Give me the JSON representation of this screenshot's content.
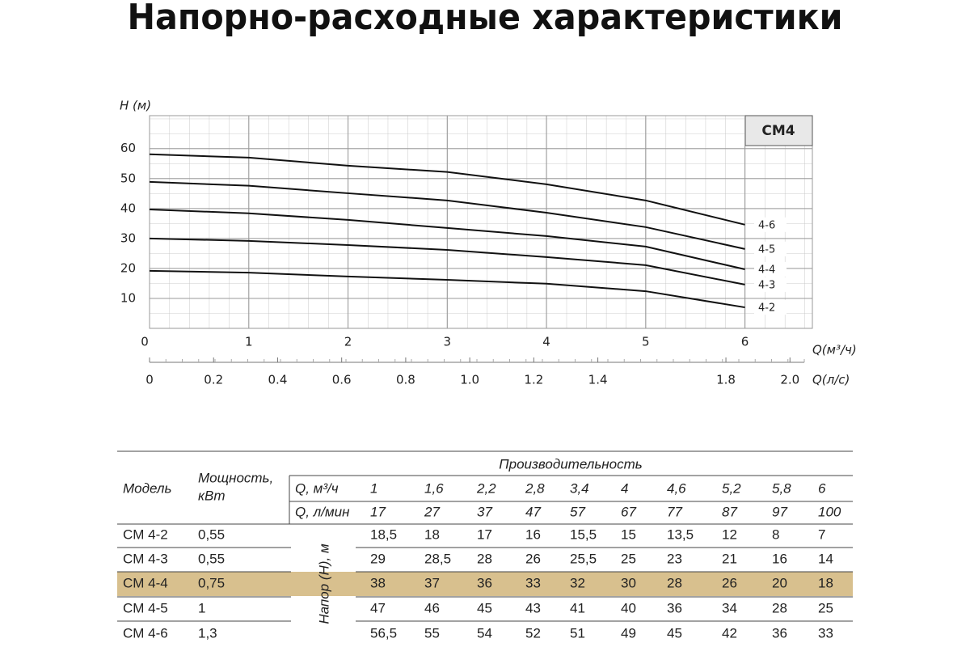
{
  "title": "Напорно-расходные характеристики",
  "chart_data": {
    "type": "line",
    "ylabel": "H (м)",
    "xlabel": "Q(м³/ч)",
    "x2label": "Q(л/с)",
    "badge": "CM4",
    "x": [
      0,
      1,
      2,
      3,
      4,
      5,
      6
    ],
    "xlim": [
      0,
      6.68
    ],
    "xticks": [
      0,
      1,
      2,
      3,
      4,
      5,
      6
    ],
    "x2lim": [
      0,
      2.07
    ],
    "x2ticks": [
      0,
      0.2,
      0.4,
      0.6,
      0.8,
      {
        "value": 1,
        "label": "1.0"
      },
      1.2,
      1.4,
      1.8,
      {
        "value": 2,
        "label": "2.0"
      }
    ],
    "ylim": [
      0,
      71
    ],
    "yticks": [
      10,
      20,
      30,
      40,
      50,
      60
    ],
    "grid": true,
    "series": [
      {
        "name": "4-6",
        "color": "#111111",
        "values": [
          58.1,
          57,
          54.3,
          52.2,
          48.1,
          42.7,
          34.6
        ]
      },
      {
        "name": "4-5",
        "color": "#111111",
        "values": [
          48.9,
          47.6,
          45.1,
          42.7,
          38.6,
          33.8,
          26.5
        ]
      },
      {
        "name": "4-4",
        "color": "#111111",
        "values": [
          39.7,
          38.4,
          36.2,
          33.5,
          30.8,
          27.3,
          19.7
        ]
      },
      {
        "name": "4-3",
        "color": "#111111",
        "values": [
          30,
          29.2,
          27.8,
          26.2,
          23.8,
          21.1,
          14.6
        ]
      },
      {
        "name": "4-2",
        "color": "#111111",
        "values": [
          19.2,
          18.6,
          17.3,
          16.2,
          14.9,
          12.4,
          7
        ]
      }
    ]
  },
  "table": {
    "header": {
      "model": "Модель",
      "power": [
        "Мощность,",
        "кВт"
      ],
      "performance": "Производительность",
      "head": "Напор (Н), м"
    },
    "flow_rows": [
      {
        "label": "Q, м³/ч",
        "values": [
          "1",
          "1,6",
          "2,2",
          "2,8",
          "3,4",
          "4",
          "4,6",
          "5,2",
          "5,8",
          "6"
        ]
      },
      {
        "label": "Q, л/мин",
        "values": [
          "17",
          "27",
          "37",
          "47",
          "57",
          "67",
          "77",
          "87",
          "97",
          "100"
        ]
      }
    ],
    "rows": [
      [
        "CM 4-2",
        "0,55",
        "18,5",
        "18",
        "17",
        "16",
        "15,5",
        "15",
        "13,5",
        "12",
        "8",
        "7"
      ],
      [
        "CM 4-3",
        "0,55",
        "29",
        "28,5",
        "28",
        "26",
        "25,5",
        "25",
        "23",
        "21",
        "16",
        "14"
      ],
      [
        "CM 4-4",
        "0,75",
        "38",
        "37",
        "36",
        "33",
        "32",
        "30",
        "28",
        "26",
        "20",
        "18"
      ],
      [
        "CM 4-5",
        "1",
        "47",
        "46",
        "45",
        "43",
        "41",
        "40",
        "36",
        "34",
        "28",
        "25"
      ],
      [
        "CM 4-6",
        "1,3",
        "56,5",
        "55",
        "54",
        "52",
        "51",
        "49",
        "45",
        "42",
        "36",
        "33"
      ]
    ],
    "highlight_row": 2,
    "highlight_color": "#d8c08e"
  }
}
